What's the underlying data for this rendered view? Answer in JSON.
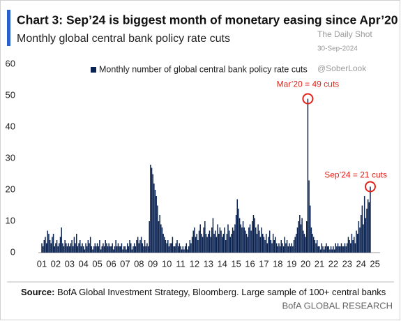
{
  "chart_data": {
    "type": "bar",
    "title": "Chart 3: Sep’24 is biggest month of monetary easing since Apr’20",
    "subtitle": "Monthly global central bank policy rate cuts",
    "watermark": [
      "The Daily Shot",
      "30-Sep-2024",
      "@SoberLook"
    ],
    "source_label": "Source:",
    "source": "BofA Global Investment Strategy, Bloomberg.  Large sample of 100+ central banks",
    "footer": "BofA GLOBAL RESEARCH",
    "annotations": [
      "Mar’20 = 49 cuts",
      "Sep’24 = 21 cuts"
    ],
    "categories": [
      "01",
      null,
      null,
      null,
      null,
      null,
      null,
      null,
      null,
      null,
      null,
      null,
      "02",
      null,
      null,
      null,
      null,
      null,
      null,
      null,
      null,
      null,
      null,
      null,
      "03",
      null,
      null,
      null,
      null,
      null,
      null,
      null,
      null,
      null,
      null,
      null,
      "04",
      null,
      null,
      null,
      null,
      null,
      null,
      null,
      null,
      null,
      null,
      null,
      "05",
      null,
      null,
      null,
      null,
      null,
      null,
      null,
      null,
      null,
      null,
      null,
      "06",
      null,
      null,
      null,
      null,
      null,
      null,
      null,
      null,
      null,
      null,
      null,
      "07",
      null,
      null,
      null,
      null,
      null,
      null,
      null,
      null,
      null,
      null,
      null,
      "08",
      null,
      null,
      null,
      null,
      null,
      null,
      null,
      null,
      null,
      null,
      null,
      "09",
      null,
      null,
      null,
      null,
      null,
      null,
      null,
      null,
      null,
      null,
      null,
      "10",
      null,
      null,
      null,
      null,
      null,
      null,
      null,
      null,
      null,
      null,
      null,
      "11",
      null,
      null,
      null,
      null,
      null,
      null,
      null,
      null,
      null,
      null,
      null,
      "12",
      null,
      null,
      null,
      null,
      null,
      null,
      null,
      null,
      null,
      null,
      null,
      "13",
      null,
      null,
      null,
      null,
      null,
      null,
      null,
      null,
      null,
      null,
      null,
      "14",
      null,
      null,
      null,
      null,
      null,
      null,
      null,
      null,
      null,
      null,
      null,
      "15",
      null,
      null,
      null,
      null,
      null,
      null,
      null,
      null,
      null,
      null,
      null,
      "16",
      null,
      null,
      null,
      null,
      null,
      null,
      null,
      null,
      null,
      null,
      null,
      "17",
      null,
      null,
      null,
      null,
      null,
      null,
      null,
      null,
      null,
      null,
      null,
      "18",
      null,
      null,
      null,
      null,
      null,
      null,
      null,
      null,
      null,
      null,
      null,
      "19",
      null,
      null,
      null,
      null,
      null,
      null,
      null,
      null,
      null,
      null,
      null,
      "20",
      null,
      null,
      null,
      null,
      null,
      null,
      null,
      null,
      null,
      null,
      null,
      "21",
      null,
      null,
      null,
      null,
      null,
      null,
      null,
      null,
      null,
      null,
      null,
      "22",
      null,
      null,
      null,
      null,
      null,
      null,
      null,
      null,
      null,
      null,
      null,
      "23",
      null,
      null,
      null,
      null,
      null,
      null,
      null,
      null,
      null,
      null,
      null,
      "24",
      null,
      null,
      null,
      null,
      null,
      null,
      null,
      null,
      null,
      null,
      null,
      "25"
    ],
    "series": [
      {
        "name": "Monthly number of global central bank policy rate cuts",
        "color": "#0b2352",
        "values": [
          3,
          2,
          4,
          5,
          3,
          7,
          6,
          4,
          3,
          5,
          6,
          2,
          3,
          4,
          2,
          3,
          5,
          8,
          3,
          2,
          4,
          3,
          2,
          3,
          2,
          3,
          4,
          2,
          5,
          3,
          6,
          2,
          3,
          4,
          2,
          3,
          2,
          1,
          3,
          2,
          4,
          3,
          5,
          2,
          1,
          2,
          3,
          2,
          3,
          2,
          4,
          1,
          2,
          3,
          2,
          4,
          3,
          2,
          3,
          2,
          2,
          3,
          1,
          2,
          4,
          2,
          3,
          2,
          2,
          3,
          1,
          2,
          2,
          1,
          3,
          2,
          4,
          3,
          1,
          2,
          3,
          2,
          4,
          5,
          3,
          4,
          5,
          3,
          2,
          4,
          2,
          3,
          2,
          10,
          28,
          27,
          25,
          22,
          20,
          18,
          15,
          10,
          12,
          9,
          8,
          6,
          5,
          4,
          3,
          4,
          2,
          3,
          3,
          5,
          2,
          2,
          3,
          4,
          2,
          3,
          2,
          1,
          2,
          1,
          2,
          3,
          1,
          2,
          4,
          3,
          5,
          7,
          8,
          5,
          6,
          4,
          7,
          9,
          6,
          5,
          8,
          10,
          6,
          5,
          6,
          7,
          5,
          8,
          11,
          6,
          7,
          5,
          9,
          6,
          8,
          7,
          5,
          6,
          8,
          4,
          6,
          9,
          7,
          5,
          6,
          8,
          7,
          9,
          12,
          17,
          14,
          11,
          9,
          8,
          10,
          8,
          7,
          6,
          5,
          8,
          9,
          7,
          10,
          12,
          11,
          8,
          6,
          9,
          7,
          5,
          8,
          6,
          5,
          4,
          6,
          3,
          5,
          7,
          4,
          3,
          6,
          4,
          5,
          3,
          2,
          3,
          2,
          4,
          3,
          2,
          5,
          3,
          4,
          2,
          3,
          2,
          3,
          2,
          4,
          5,
          6,
          8,
          10,
          12,
          9,
          11,
          7,
          6,
          5,
          10,
          49,
          23,
          15,
          8,
          6,
          5,
          4,
          3,
          4,
          2,
          2,
          1,
          3,
          2,
          1,
          2,
          3,
          2,
          2,
          1,
          2,
          1,
          2,
          1,
          3,
          2,
          3,
          2,
          2,
          3,
          2,
          2,
          3,
          2,
          3,
          5,
          4,
          3,
          6,
          4,
          5,
          3,
          7,
          6,
          10,
          8,
          12,
          15,
          9,
          18,
          11,
          14,
          17,
          16,
          21,
          null,
          null,
          null,
          null
        ]
      }
    ],
    "ylim": [
      0,
      60
    ],
    "yticks": [
      0,
      10,
      20,
      30,
      40,
      50,
      60
    ],
    "grid": false,
    "annotation_color": "#e3231b"
  }
}
